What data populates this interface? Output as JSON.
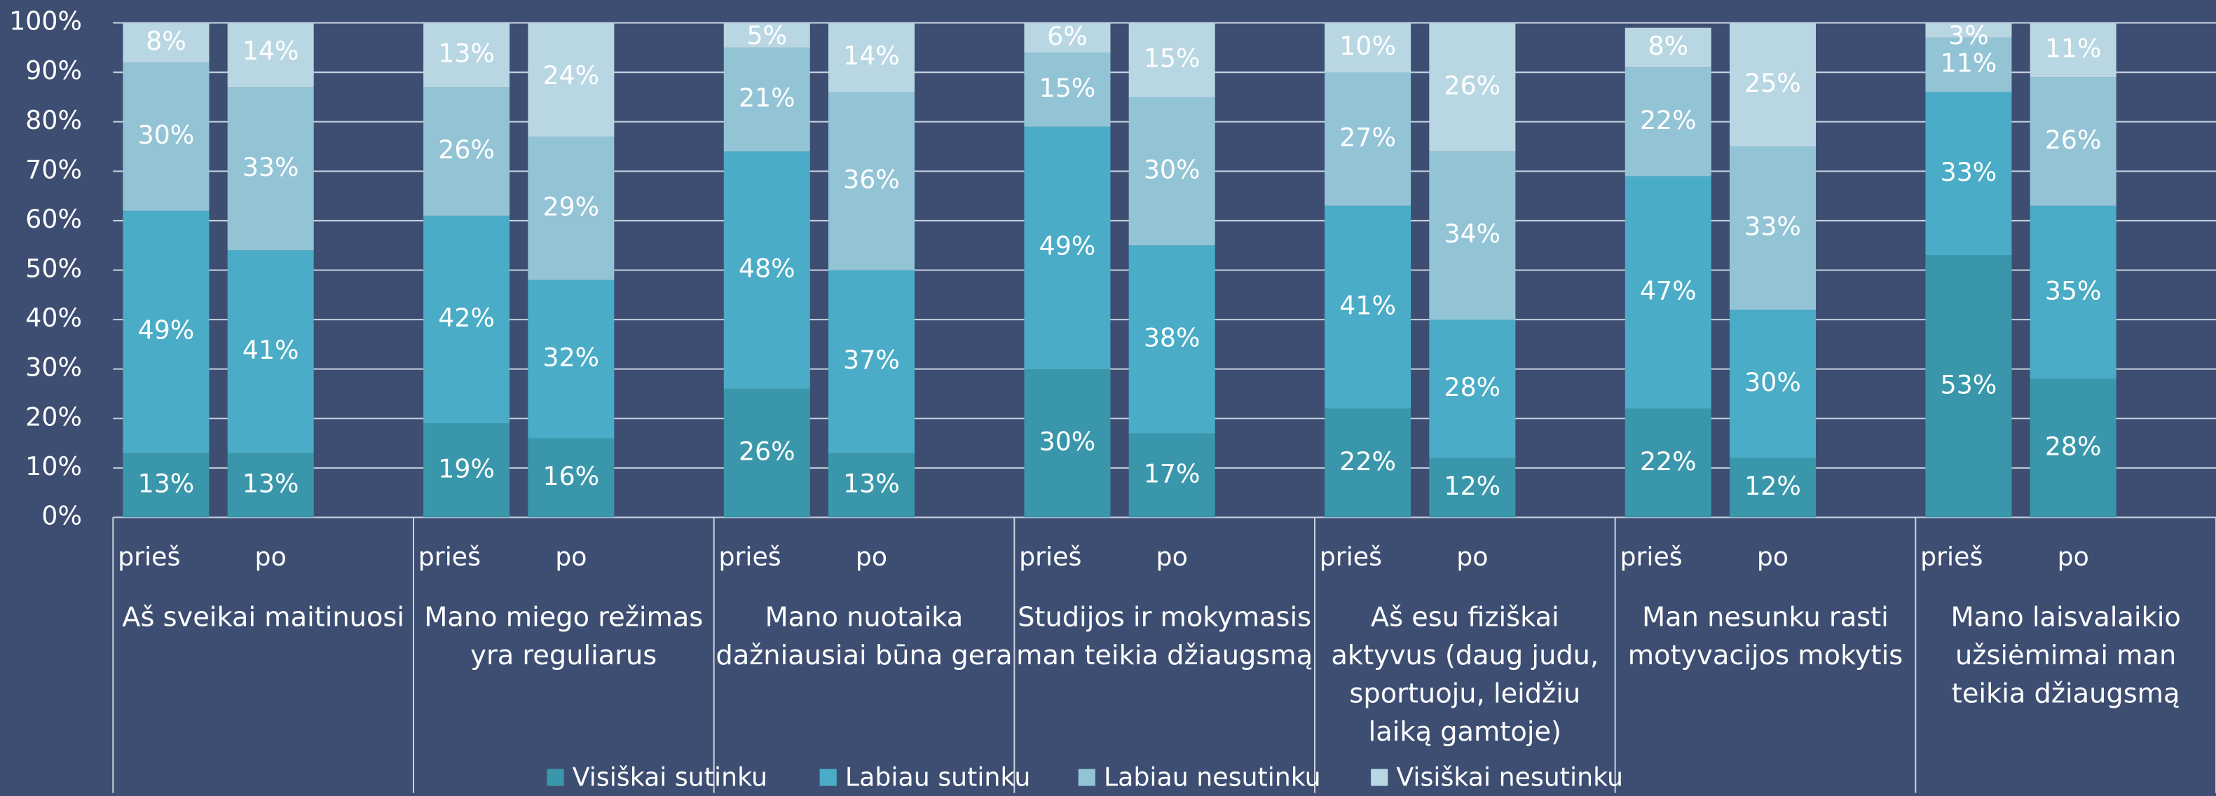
{
  "chart_data": {
    "type": "stacked_bar",
    "groups": [
      "Aš sveikai maitinuosi",
      "Mano miego režimas yra reguliarus",
      "Mano nuotaika dažniausiai būna gera",
      "Studijos ir mokymasis man teikia džiaugsmą",
      "Aš esu fiziškai aktyvus (daug judu, sportuoju, leidžiu laiką gamtoje)",
      "Man nesunku rasti motyvacijos mokytis",
      "Mano laisvalaikio užsiėmimai man teikia džiaugsmą"
    ],
    "categories": [
      "prieš",
      "po",
      "prieš",
      "po",
      "prieš",
      "po",
      "prieš",
      "po",
      "prieš",
      "po",
      "prieš",
      "po",
      "prieš",
      "po"
    ],
    "series": [
      {
        "name": "Visiškai sutinku",
        "color": "#3a97ab",
        "values": [
          13,
          13,
          19,
          16,
          26,
          13,
          30,
          17,
          22,
          12,
          22,
          12,
          53,
          28
        ],
        "value_labels": [
          "13%",
          "13%",
          "19%",
          "16%",
          "26%",
          "13%",
          "30%",
          "17%",
          "22%",
          "12%",
          "22%",
          "12%",
          "53%",
          "28%"
        ]
      },
      {
        "name": "Labiau sutinku",
        "color": "#4aacc6",
        "values": [
          49,
          41,
          42,
          32,
          48,
          37,
          49,
          38,
          41,
          28,
          47,
          30,
          33,
          35
        ],
        "value_labels": [
          "49%",
          "41%",
          "42%",
          "32%",
          "48%",
          "37%",
          "49%",
          "38%",
          "41%",
          "28%",
          "47%",
          "30%",
          "33%",
          "35%"
        ]
      },
      {
        "name": "Labiau nesutinku",
        "color": "#93c4d6",
        "values": [
          30,
          33,
          26,
          29,
          21,
          36,
          15,
          30,
          27,
          34,
          22,
          33,
          11,
          26
        ],
        "value_labels": [
          "30%",
          "33%",
          "26%",
          "29%",
          "21%",
          "36%",
          "15%",
          "30%",
          "27%",
          "34%",
          "22%",
          "33%",
          "11%",
          "26%"
        ]
      },
      {
        "name": "Visiškai nesutinku",
        "color": "#b9d7e3",
        "values": [
          8,
          14,
          13,
          24,
          5,
          14,
          6,
          15,
          10,
          26,
          8,
          25,
          3,
          11
        ],
        "value_labels": [
          "8%",
          "14%",
          "13%",
          "24%",
          "5%",
          "14%",
          "6%",
          "15%",
          "10%",
          "26%",
          "8%",
          "25%",
          "3%",
          "11%"
        ]
      }
    ],
    "ylim": [
      0,
      100
    ],
    "yticks": [
      {
        "value": 0,
        "label": "0%"
      },
      {
        "value": 10,
        "label": "10%"
      },
      {
        "value": 20,
        "label": "20%"
      },
      {
        "value": 30,
        "label": "30%"
      },
      {
        "value": 40,
        "label": "40%"
      },
      {
        "value": 50,
        "label": "50%"
      },
      {
        "value": 60,
        "label": "60%"
      },
      {
        "value": 70,
        "label": "70%"
      },
      {
        "value": 80,
        "label": "80%"
      },
      {
        "value": 90,
        "label": "90%"
      },
      {
        "value": 100,
        "label": "100%"
      }
    ],
    "grid": true
  }
}
